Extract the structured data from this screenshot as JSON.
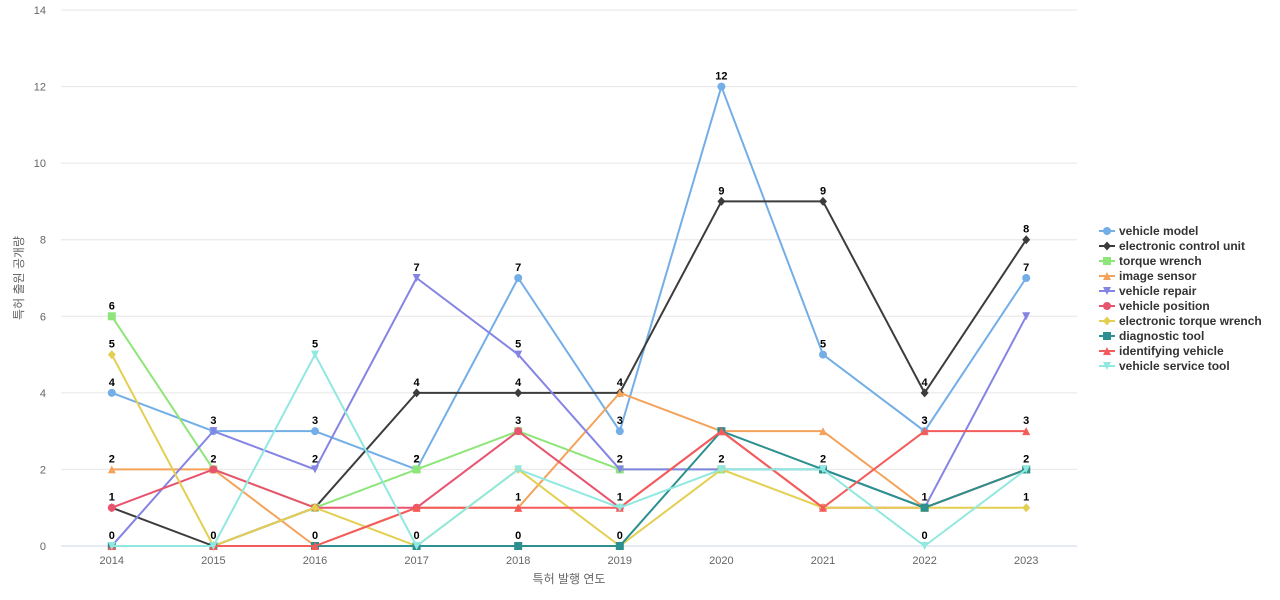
{
  "chart_data": {
    "type": "line",
    "title": "",
    "xlabel": "특허 발행 연도",
    "ylabel": "특허 출원 공개량",
    "categories": [
      "2014",
      "2015",
      "2016",
      "2017",
      "2018",
      "2019",
      "2020",
      "2021",
      "2022",
      "2023"
    ],
    "ylim": [
      0,
      14
    ],
    "yticks": [
      0,
      2,
      4,
      6,
      8,
      10,
      12,
      14
    ],
    "grid": true,
    "legend_position": "right",
    "series": [
      {
        "name": "vehicle model",
        "color": "#73aee6",
        "marker": "circle",
        "values": [
          4,
          3,
          3,
          2,
          7,
          3,
          12,
          5,
          3,
          7
        ]
      },
      {
        "name": "electronic control unit",
        "color": "#3c3c3c",
        "marker": "diamond",
        "values": [
          1,
          0,
          1,
          4,
          4,
          4,
          9,
          9,
          4,
          8
        ]
      },
      {
        "name": "torque wrench",
        "color": "#8ee67a",
        "marker": "square",
        "values": [
          6,
          2,
          1,
          2,
          3,
          2,
          2,
          2,
          1,
          2
        ]
      },
      {
        "name": "image sensor",
        "color": "#f3a35c",
        "marker": "triangle",
        "values": [
          2,
          2,
          0,
          1,
          1,
          4,
          3,
          3,
          1,
          2
        ]
      },
      {
        "name": "vehicle repair",
        "color": "#8484e4",
        "marker": "triangle-down",
        "values": [
          0,
          3,
          2,
          7,
          5,
          2,
          2,
          2,
          1,
          6
        ]
      },
      {
        "name": "vehicle position",
        "color": "#e8536e",
        "marker": "circle",
        "values": [
          1,
          2,
          1,
          1,
          3,
          1,
          3,
          1,
          1,
          2
        ]
      },
      {
        "name": "electronic torque wrench",
        "color": "#e3cf52",
        "marker": "diamond",
        "values": [
          5,
          0,
          1,
          0,
          2,
          0,
          2,
          1,
          1,
          1
        ]
      },
      {
        "name": "diagnostic tool",
        "color": "#2b908f",
        "marker": "square",
        "values": [
          0,
          0,
          0,
          0,
          0,
          0,
          3,
          2,
          1,
          2
        ]
      },
      {
        "name": "identifying vehicle",
        "color": "#f45b5b",
        "marker": "triangle",
        "values": [
          0,
          0,
          0,
          1,
          1,
          1,
          3,
          1,
          3,
          3
        ]
      },
      {
        "name": "vehicle service tool",
        "color": "#91e8e1",
        "marker": "triangle-down",
        "values": [
          0,
          0,
          5,
          0,
          2,
          1,
          2,
          2,
          0,
          2
        ]
      }
    ],
    "data_labels": {
      "vehicle model": {
        "values": [
          4,
          3,
          3,
          2,
          7,
          3,
          12,
          5,
          3,
          7
        ]
      },
      "electronic control unit": {
        "indices": [
          3,
          4,
          6,
          7,
          8,
          9
        ]
      },
      "torque wrench": {
        "indices": [
          0,
          1,
          3,
          4,
          5,
          6,
          7,
          9
        ]
      },
      "image sensor": {
        "indices": [
          0,
          4,
          5,
          8
        ]
      },
      "vehicle repair": {
        "indices": [
          2,
          3,
          4
        ]
      },
      "vehicle position": {
        "indices": [
          0
        ]
      },
      "electronic torque wrench": {
        "indices": [
          0,
          9
        ]
      },
      "identifying vehicle": {
        "indices": [
          8,
          9
        ]
      },
      "vehicle service tool": {
        "indices": [
          1,
          2,
          3,
          5,
          8
        ]
      },
      "extra": [
        {
          "x": 0,
          "value": 0
        },
        {
          "x": 2,
          "value": 0
        },
        {
          "x": 4,
          "value": 0
        },
        {
          "x": 5,
          "value": 0
        }
      ]
    }
  }
}
